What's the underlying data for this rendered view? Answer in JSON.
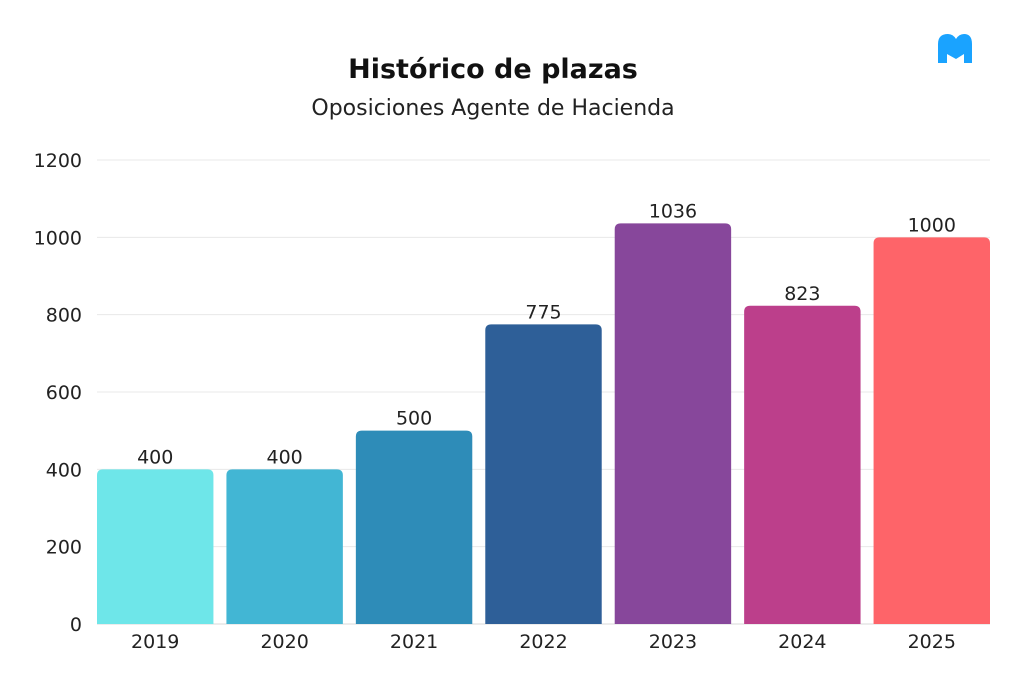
{
  "chart_data": {
    "type": "bar",
    "title": "Histórico de plazas",
    "subtitle": "Oposiciones Agente de Hacienda",
    "categories": [
      "2019",
      "2020",
      "2021",
      "2022",
      "2023",
      "2024",
      "2025"
    ],
    "values": [
      400,
      400,
      500,
      775,
      1036,
      823,
      1000
    ],
    "colors": [
      "#6ee6e9",
      "#42b6d4",
      "#2e8cb8",
      "#2e5f98",
      "#87479b",
      "#bc3f8b",
      "#fe6469"
    ],
    "ylim": [
      0,
      1200
    ],
    "yticks": [
      0,
      200,
      400,
      600,
      800,
      1000,
      1200
    ],
    "grid": true,
    "data_labels": true,
    "xlabel": "",
    "ylabel": ""
  },
  "logo": {
    "text": "M",
    "color": "#1aa3ff"
  }
}
